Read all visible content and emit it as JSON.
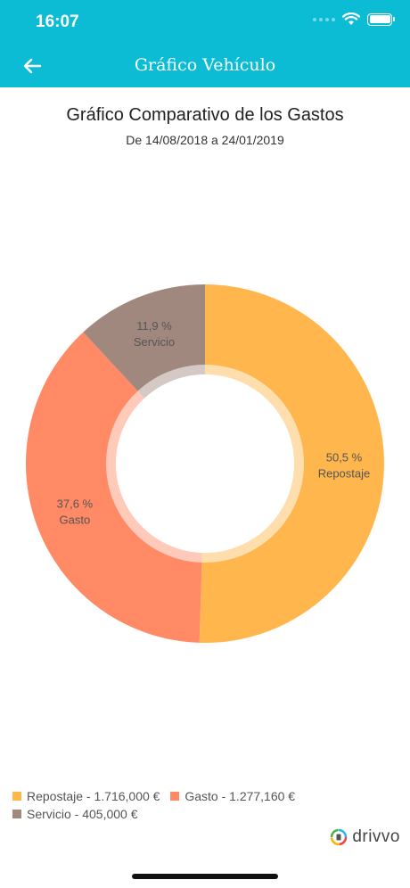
{
  "status": {
    "time": "16:07"
  },
  "appbar": {
    "title": "Gráfico Vehículo"
  },
  "chart_data": {
    "type": "pie",
    "title": "Gráfico Comparativo de los Gastos",
    "subtitle": "De 14/08/2018 a 24/01/2019",
    "series": [
      {
        "name": "Repostaje",
        "percent": 50.5,
        "value": 1716.0,
        "color": "#ffb74d"
      },
      {
        "name": "Gasto",
        "percent": 37.6,
        "value": 1277.16,
        "color": "#ff8a65"
      },
      {
        "name": "Servicio",
        "percent": 11.9,
        "value": 405.0,
        "color": "#a1887f"
      }
    ],
    "slice_labels": [
      {
        "pct": "50,5  %",
        "name": "Repostaje"
      },
      {
        "pct": "37,6  %",
        "name": "Gasto"
      },
      {
        "pct": "11,9  %",
        "name": "Servicio"
      }
    ],
    "legend": [
      "Repostaje - 1.716,000 €",
      "Gasto - 1.277,160 €",
      "Servicio - 405,000 €"
    ],
    "donut": true
  },
  "brand": {
    "name": "drivvo"
  }
}
